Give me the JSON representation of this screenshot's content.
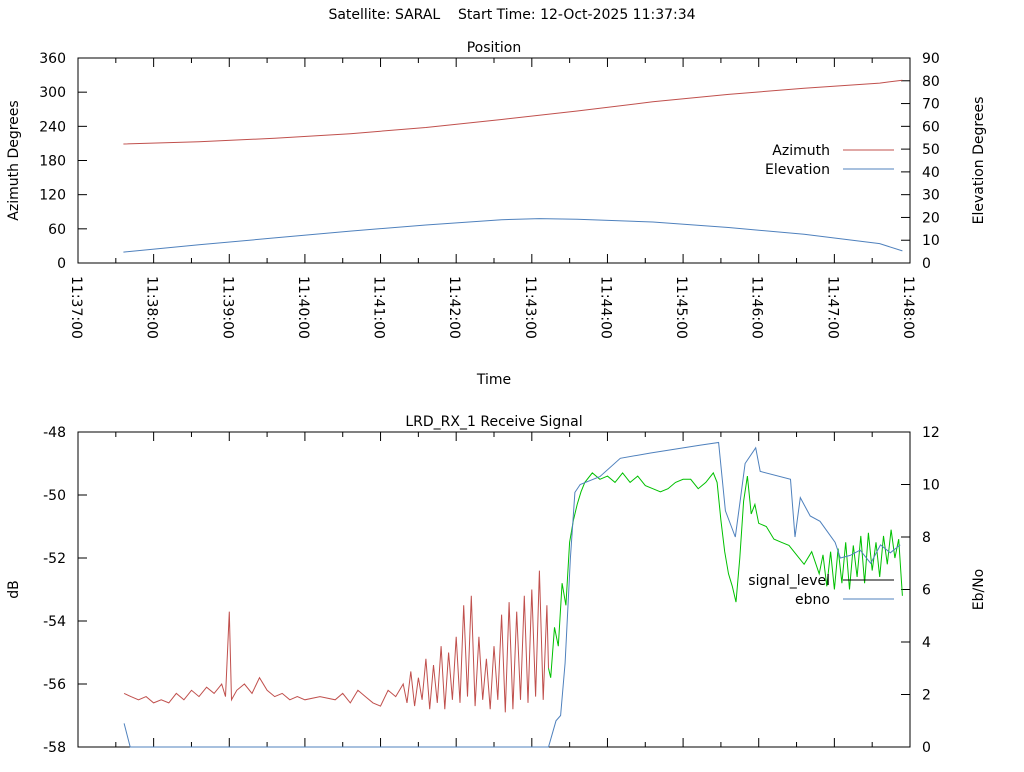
{
  "header": {
    "title": "Satellite: SARAL    Start Time: 12-Oct-2025 11:37:34"
  },
  "chart_data": [
    {
      "type": "line",
      "title": "Position",
      "xlabel": "Time",
      "ylabel": "Azimuth Degrees",
      "y2label": "Elevation Degrees",
      "x_unit": "minutes after 11:37:00",
      "xlim": [
        0,
        11
      ],
      "ylim": [
        0,
        360
      ],
      "y2lim": [
        0,
        90
      ],
      "xticks": [
        "11:37:00",
        "11:38:00",
        "11:39:00",
        "11:40:00",
        "11:41:00",
        "11:42:00",
        "11:43:00",
        "11:44:00",
        "11:45:00",
        "11:46:00",
        "11:47:00",
        "11:48:00"
      ],
      "yticks": [
        0,
        60,
        120,
        180,
        240,
        300,
        360
      ],
      "y2ticks": [
        0,
        10,
        20,
        30,
        40,
        50,
        60,
        70,
        80,
        90
      ],
      "legend_position": "right",
      "series": [
        {
          "name": "Azimuth",
          "axis": "y",
          "color": "#c0504d",
          "x": [
            0.6,
            1.6,
            2.6,
            3.6,
            4.6,
            5.6,
            6.6,
            7.6,
            8.6,
            9.6,
            10.6,
            10.9
          ],
          "y": [
            209,
            213,
            219,
            227,
            238,
            252,
            267,
            283,
            296,
            307,
            316,
            321
          ]
        },
        {
          "name": "Elevation",
          "axis": "y2",
          "color": "#4f81bd",
          "x": [
            0.6,
            1.6,
            2.6,
            3.6,
            4.6,
            5.6,
            6.1,
            6.6,
            7.6,
            8.6,
            9.6,
            10.6,
            10.9
          ],
          "y": [
            4.8,
            8,
            11,
            14,
            16.7,
            19.0,
            19.5,
            19.2,
            18.0,
            15.6,
            12.6,
            8.5,
            5.3
          ]
        }
      ]
    },
    {
      "type": "line",
      "title": "LRD_RX_1 Receive Signal",
      "ylabel": "dB",
      "y2label": "Eb/No",
      "x_unit": "minutes after 11:37:00",
      "xlim": [
        0,
        11
      ],
      "ylim": [
        -58,
        -48
      ],
      "y2lim": [
        0,
        12
      ],
      "yticks": [
        -58,
        -56,
        -54,
        -52,
        -50,
        -48
      ],
      "y2ticks": [
        0,
        2,
        4,
        6,
        8,
        10,
        12
      ],
      "legend_position": "right",
      "series": [
        {
          "name": "signal_level",
          "axis": "y",
          "legend_color": "#000000",
          "segments": [
            {
              "color": "#c0504d",
              "x": [
                0.61,
                0.7,
                0.8,
                0.9,
                1.0,
                1.1,
                1.2,
                1.3,
                1.4,
                1.5,
                1.6,
                1.7,
                1.8,
                1.9,
                1.95,
                2.0,
                2.03,
                2.1,
                2.2,
                2.3,
                2.4,
                2.5,
                2.6,
                2.7,
                2.8,
                2.9,
                3.0,
                3.2,
                3.4,
                3.5,
                3.6,
                3.7,
                3.8,
                3.9,
                4.0,
                4.1,
                4.2,
                4.3,
                4.35,
                4.4,
                4.45,
                4.5,
                4.55,
                4.6,
                4.65,
                4.7,
                4.75,
                4.8,
                4.85,
                4.9,
                4.95,
                5.0,
                5.05,
                5.1,
                5.15,
                5.2,
                5.25,
                5.3,
                5.35,
                5.4,
                5.45,
                5.5,
                5.55,
                5.6,
                5.65,
                5.7,
                5.75,
                5.8,
                5.85,
                5.9,
                5.95,
                6.0,
                6.05,
                6.1,
                6.15,
                6.2,
                6.22
              ],
              "y": [
                -56.3,
                -56.4,
                -56.5,
                -56.4,
                -56.6,
                -56.5,
                -56.6,
                -56.3,
                -56.5,
                -56.2,
                -56.4,
                -56.1,
                -56.3,
                -56.0,
                -56.4,
                -53.7,
                -56.5,
                -56.2,
                -56.0,
                -56.3,
                -55.8,
                -56.2,
                -56.4,
                -56.3,
                -56.5,
                -56.4,
                -56.5,
                -56.4,
                -56.5,
                -56.3,
                -56.6,
                -56.2,
                -56.4,
                -56.6,
                -56.7,
                -56.2,
                -56.4,
                -56.0,
                -56.6,
                -55.6,
                -56.7,
                -55.8,
                -56.5,
                -55.2,
                -56.8,
                -55.4,
                -56.6,
                -54.8,
                -56.8,
                -55.0,
                -56.5,
                -54.5,
                -56.6,
                -53.5,
                -56.4,
                -53.2,
                -56.7,
                -54.5,
                -56.5,
                -55.2,
                -56.8,
                -54.8,
                -56.5,
                -53.8,
                -56.9,
                -53.4,
                -56.8,
                -53.7,
                -56.5,
                -53.2,
                -56.6,
                -53.0,
                -56.4,
                -52.4,
                -56.5,
                -53.5,
                -55.5
              ]
            },
            {
              "color": "#00c000",
              "x": [
                6.22,
                6.25,
                6.3,
                6.35,
                6.4,
                6.45,
                6.5,
                6.55,
                6.6,
                6.65,
                6.7,
                6.8,
                6.9,
                7.0,
                7.1,
                7.2,
                7.3,
                7.4,
                7.5,
                7.6,
                7.7,
                7.8,
                7.9,
                8.0,
                8.1,
                8.2,
                8.3,
                8.4,
                8.45,
                8.5,
                8.55,
                8.6,
                8.65,
                8.7,
                8.75,
                8.8,
                8.85,
                8.9,
                8.95,
                9.0,
                9.1,
                9.2,
                9.3,
                9.4,
                9.5,
                9.6,
                9.7,
                9.8,
                9.85,
                9.9,
                9.95,
                10.0,
                10.05,
                10.1,
                10.15,
                10.2,
                10.25,
                10.3,
                10.35,
                10.4,
                10.45,
                10.5,
                10.55,
                10.6,
                10.65,
                10.7,
                10.75,
                10.8,
                10.85,
                10.9
              ],
              "y": [
                -55.5,
                -55.8,
                -54.2,
                -54.8,
                -52.8,
                -53.5,
                -51.5,
                -50.8,
                -50.3,
                -49.9,
                -49.6,
                -49.3,
                -49.5,
                -49.4,
                -49.6,
                -49.3,
                -49.6,
                -49.4,
                -49.7,
                -49.8,
                -49.9,
                -49.8,
                -49.6,
                -49.5,
                -49.5,
                -49.8,
                -49.6,
                -49.3,
                -49.6,
                -50.8,
                -51.8,
                -52.5,
                -52.9,
                -53.4,
                -52.0,
                -50.2,
                -49.4,
                -50.6,
                -50.3,
                -50.9,
                -51.0,
                -51.4,
                -51.5,
                -51.6,
                -51.9,
                -52.2,
                -51.8,
                -52.5,
                -51.9,
                -52.9,
                -51.8,
                -53.0,
                -51.7,
                -52.8,
                -51.5,
                -53.0,
                -51.6,
                -52.6,
                -51.3,
                -52.8,
                -51.2,
                -52.4,
                -51.5,
                -52.6,
                -51.3,
                -52.2,
                -51.1,
                -52.0,
                -51.4,
                -53.2
              ]
            }
          ]
        },
        {
          "name": "ebno",
          "axis": "y2",
          "color": "#4f81bd",
          "x": [
            0.61,
            0.69,
            6.22,
            6.32,
            6.38,
            6.44,
            6.51,
            6.57,
            6.64,
            6.9,
            7.17,
            7.57,
            8.23,
            8.47,
            8.56,
            8.69,
            8.76,
            8.82,
            8.96,
            9.02,
            9.42,
            9.48,
            9.55,
            9.68,
            9.81,
            10.01,
            10.08,
            10.21,
            10.34,
            10.48,
            10.61,
            10.74,
            10.87
          ],
          "y": [
            0.9,
            0,
            0,
            1.0,
            1.2,
            3.2,
            7.2,
            9.7,
            10.0,
            10.3,
            11.0,
            11.2,
            11.5,
            11.6,
            9.0,
            8.0,
            9.5,
            10.8,
            11.4,
            10.5,
            10.2,
            8.0,
            9.5,
            8.8,
            8.6,
            7.8,
            7.2,
            7.3,
            7.5,
            7.0,
            7.7,
            7.4,
            7.7
          ]
        }
      ]
    }
  ]
}
